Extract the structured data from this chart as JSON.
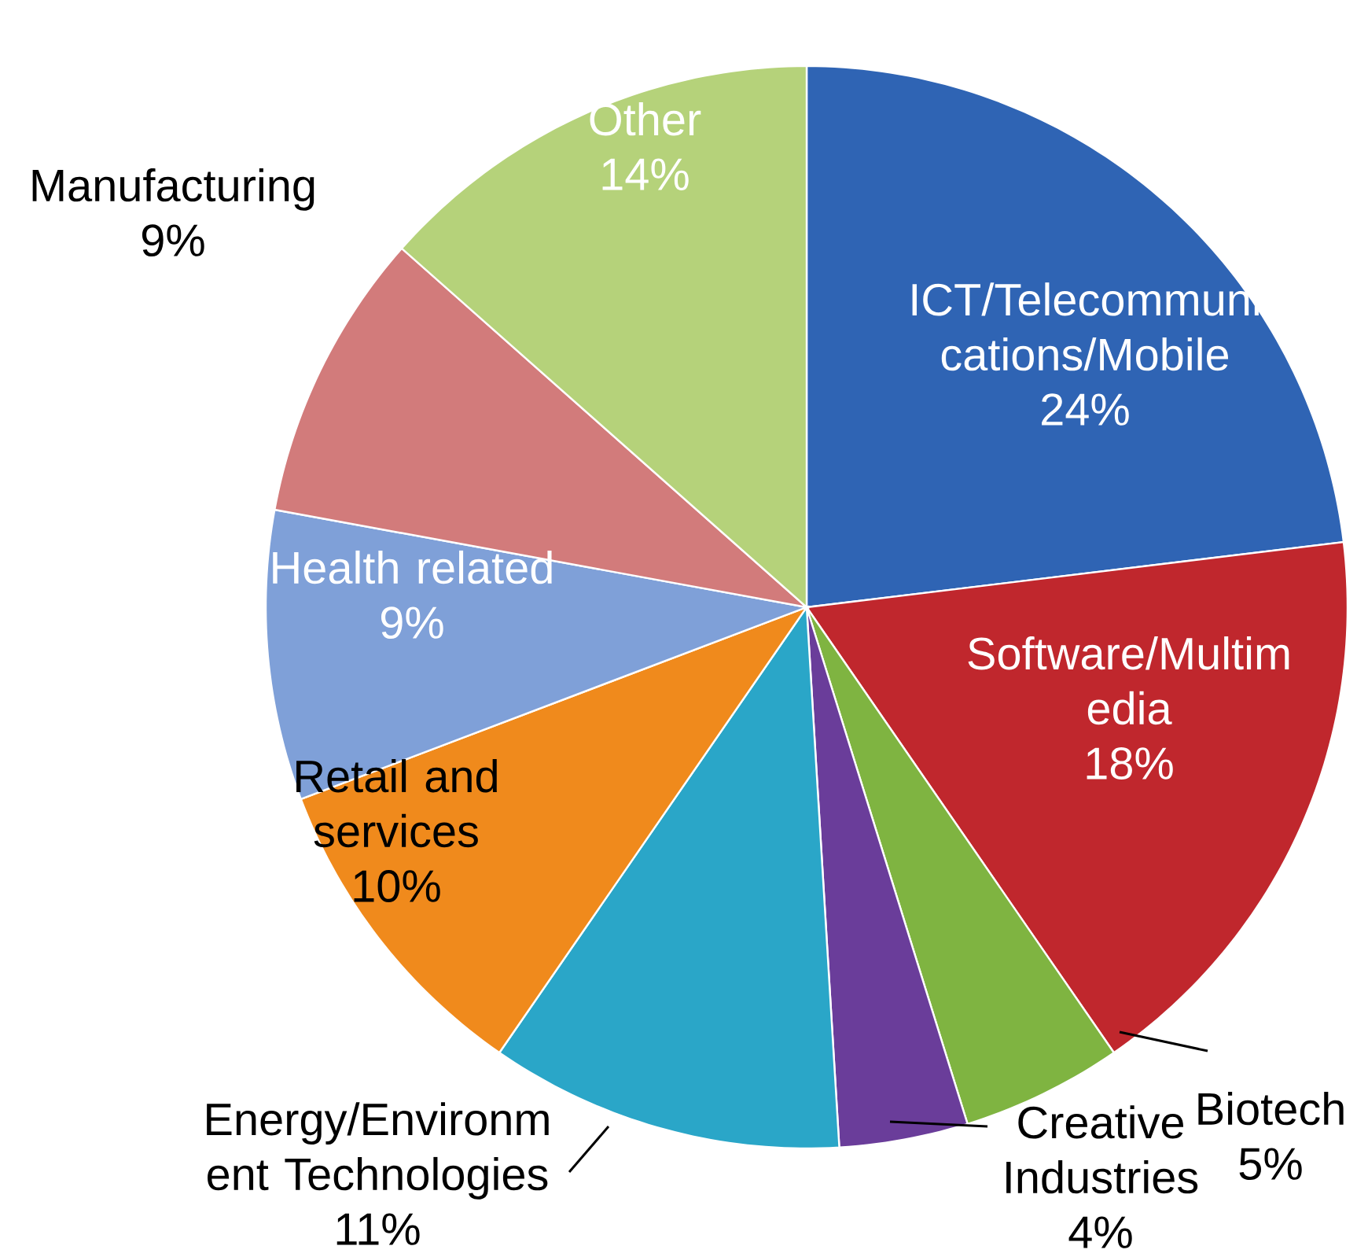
{
  "chart_data": {
    "type": "pie",
    "categories": [
      "ICT/Telecommuni cations/Mobile",
      "Software/Multim edia",
      "Biotech",
      "Creative Industries",
      "Energy/Environm ent Technologies",
      "Retail and services",
      "Health related",
      "Manufacturing",
      "Other"
    ],
    "values": [
      24,
      18,
      5,
      4,
      11,
      10,
      9,
      9,
      14
    ],
    "value_labels": [
      "24%",
      "18%",
      "5%",
      "4%",
      "11%",
      "10%",
      "9%",
      "9%",
      "14%"
    ],
    "colors": [
      "#2f64b4",
      "#c0272d",
      "#7fb441",
      "#6a3d9a",
      "#2aa6c8",
      "#f08a1c",
      "#7fa0d8",
      "#d27b7b",
      "#b5d27a"
    ]
  }
}
